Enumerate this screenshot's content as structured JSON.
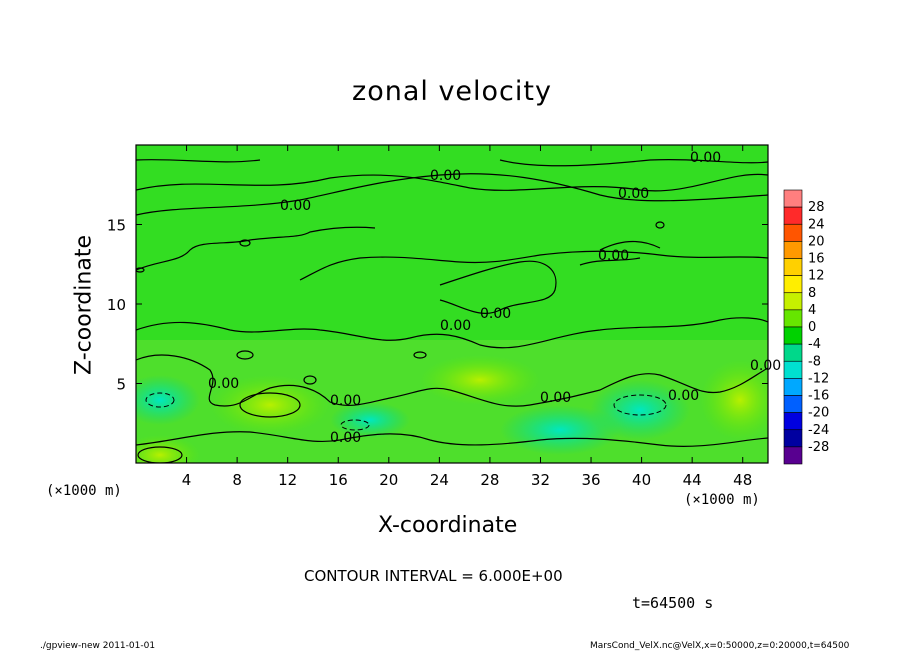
{
  "chart_data": {
    "type": "heatmap",
    "title": "zonal velocity",
    "xlabel": "X-coordinate",
    "ylabel": "Z-coordinate",
    "x_unit": "(×1000 m)",
    "xlim": [
      0,
      50
    ],
    "ylim": [
      0,
      20
    ],
    "xticks": [
      4,
      8,
      12,
      16,
      20,
      24,
      28,
      32,
      36,
      40,
      44,
      48
    ],
    "yticks": [
      5,
      10,
      15
    ],
    "colorbar": {
      "levels": [
        28,
        24,
        20,
        16,
        12,
        8,
        4,
        0,
        -4,
        -8,
        -12,
        -16,
        -20,
        -24,
        -28
      ],
      "colors": [
        "#ff7f7f",
        "#ff2a2a",
        "#ff5500",
        "#ff9900",
        "#ffd000",
        "#ffee00",
        "#c6f000",
        "#66e600",
        "#00d200",
        "#00d88a",
        "#00e0d0",
        "#00a8ff",
        "#0060ff",
        "#0000e0",
        "#0000a0",
        "#580090"
      ]
    },
    "contour_labels": [
      "0.00",
      "0.00",
      "0.00",
      "0.00",
      "0.00",
      "0.00",
      "0.00",
      "0.00",
      "0.00",
      "0.00",
      "0.00"
    ],
    "contour_interval": "CONTOUR INTERVAL = 6.000E+00",
    "time": "t=64500 s"
  },
  "footer": {
    "left": "./gpview-new  2011-01-01",
    "right": "MarsCond_VelX.nc@VelX,x=0:50000,z=0:20000,t=64500"
  }
}
